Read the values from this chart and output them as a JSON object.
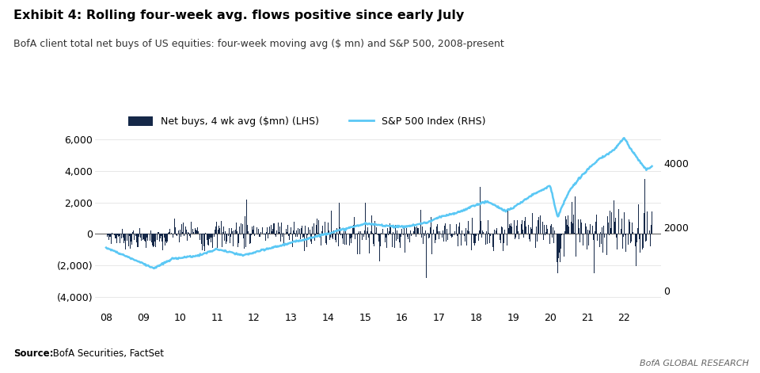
{
  "title_bold": "Exhibit 4: Rolling four-week avg. flows positive since early July",
  "subtitle": "BofA client total net buys of US equities: four-week moving avg ($ mn) and S&P 500, 2008-present",
  "source_bold": "Source:",
  "source_rest": " BofA Securities, FactSet",
  "branding": "BofA GLOBAL RESEARCH",
  "bar_color": "#152848",
  "line_color": "#5bc8f5",
  "background_color": "#ffffff",
  "accent_color": "#2255bb",
  "lhs_ylim": [
    -4800,
    7500
  ],
  "rhs_ylim": [
    -600,
    5500
  ],
  "lhs_yticks": [
    -4000,
    -2000,
    0,
    2000,
    4000,
    6000
  ],
  "lhs_yticklabels": [
    "(4,000)",
    "(2,000)",
    "0",
    "2,000",
    "4,000",
    "6,000"
  ],
  "rhs_yticks": [
    0,
    2000,
    4000
  ],
  "rhs_yticklabels": [
    "0",
    "2000",
    "4000"
  ],
  "legend_bar_label": "Net buys, 4 wk avg ($mn) (LHS)",
  "legend_line_label": "S&P 500 Index (RHS)"
}
